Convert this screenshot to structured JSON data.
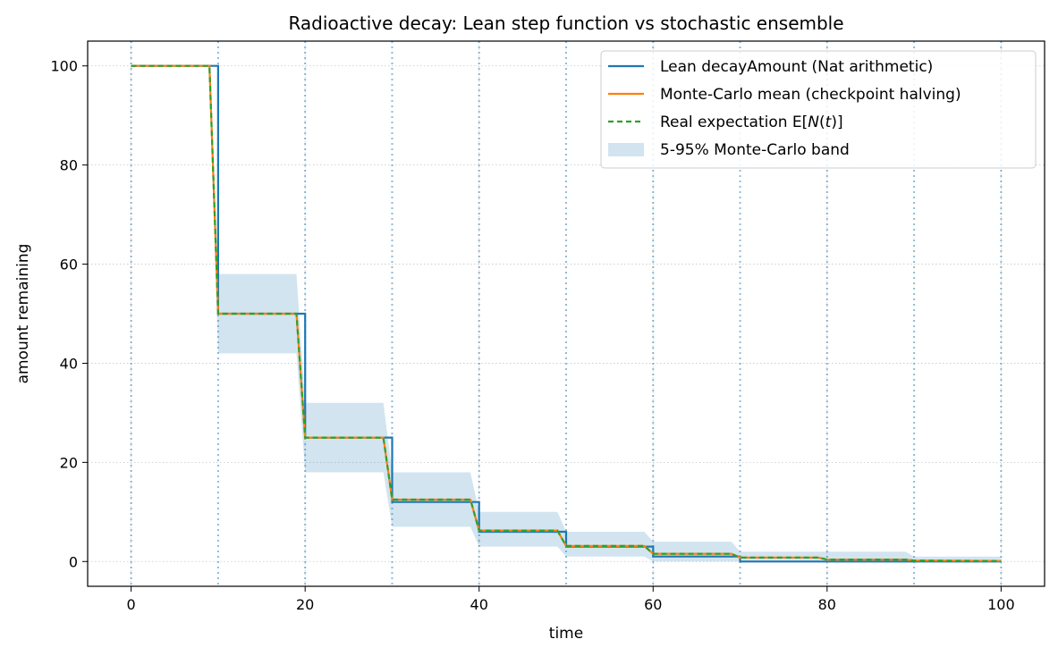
{
  "chart_data": {
    "type": "line",
    "title": "Radioactive decay: Lean step function vs stochastic ensemble",
    "xlabel": "time",
    "ylabel": "amount remaining",
    "xlim": [
      -5,
      105
    ],
    "ylim": [
      -5,
      105
    ],
    "xticks": [
      0,
      20,
      40,
      60,
      80,
      100
    ],
    "yticks": [
      0,
      20,
      40,
      60,
      80,
      100
    ],
    "grid": true,
    "legend_position": "top-right",
    "checkpoints": [
      0,
      10,
      20,
      30,
      40,
      50,
      60,
      70,
      80,
      90,
      100
    ],
    "series": [
      {
        "name": "Lean decayAmount (Nat arithmetic)",
        "style": "solid",
        "color": "#1f77b4",
        "x": [
          0,
          10,
          10,
          20,
          20,
          30,
          30,
          40,
          40,
          50,
          50,
          60,
          60,
          70,
          70,
          100
        ],
        "y": [
          100,
          100,
          50,
          50,
          25,
          25,
          12,
          12,
          6,
          6,
          3,
          3,
          1,
          1,
          0,
          0
        ]
      },
      {
        "name": "Monte-Carlo mean (checkpoint halving)",
        "style": "solid",
        "color": "#ff7f0e",
        "x": [
          0,
          9,
          10,
          19,
          20,
          29,
          30,
          39,
          40,
          49,
          50,
          59,
          60,
          69,
          70,
          79,
          80,
          89,
          90,
          100
        ],
        "y": [
          100,
          100,
          50,
          50,
          25,
          25,
          12.5,
          12.5,
          6.25,
          6.25,
          3.13,
          3.13,
          1.56,
          1.56,
          0.78,
          0.78,
          0.39,
          0.39,
          0.2,
          0.1
        ]
      },
      {
        "name": "Real expectation $E[N(t)]$",
        "style": "dashed",
        "color": "#2ca02c",
        "x": [
          0,
          9,
          10,
          19,
          20,
          29,
          30,
          39,
          40,
          49,
          50,
          59,
          60,
          69,
          70,
          79,
          80,
          89,
          90,
          100
        ],
        "y": [
          100,
          100,
          50,
          50,
          25,
          25,
          12.5,
          12.5,
          6.25,
          6.25,
          3.13,
          3.13,
          1.56,
          1.56,
          0.78,
          0.78,
          0.39,
          0.39,
          0.2,
          0.1
        ]
      }
    ],
    "band": {
      "name": "5-95% Monte-Carlo band",
      "color": "#1f77b4",
      "x": [
        0,
        9,
        10,
        19,
        20,
        29,
        30,
        39,
        40,
        49,
        50,
        59,
        60,
        69,
        70,
        79,
        80,
        89,
        90,
        100
      ],
      "lower": [
        100,
        100,
        42,
        42,
        18,
        18,
        7,
        7,
        3,
        3,
        1,
        1,
        0,
        0,
        0,
        0,
        0,
        0,
        0,
        0
      ],
      "upper": [
        100,
        100,
        58,
        58,
        32,
        32,
        18,
        18,
        10,
        10,
        6,
        6,
        4,
        4,
        2,
        2,
        2,
        2,
        1,
        1
      ]
    },
    "legend": [
      {
        "label": "Lean decayAmount (Nat arithmetic)",
        "kind": "line",
        "color": "#1f77b4"
      },
      {
        "label": "Monte-Carlo mean (checkpoint halving)",
        "kind": "line",
        "color": "#ff7f0e"
      },
      {
        "label": "Real expectation $E[N(t)]$",
        "kind": "dashed",
        "color": "#2ca02c"
      },
      {
        "label": "5-95% Monte-Carlo band",
        "kind": "patch",
        "color": "#1f77b4"
      }
    ]
  }
}
